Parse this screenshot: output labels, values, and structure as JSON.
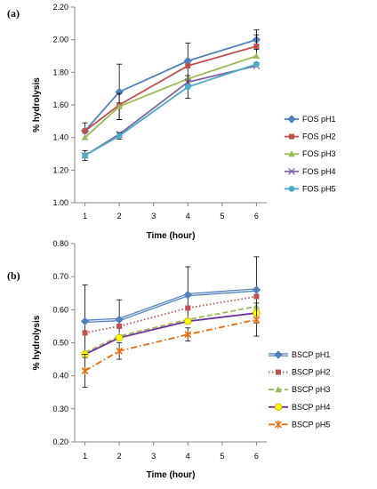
{
  "chart_data": [
    {
      "type": "line",
      "panel_label": "(a)",
      "xlabel": "Time (hour)",
      "ylabel": "% hydrolysis",
      "x": [
        1,
        2,
        4,
        6
      ],
      "x_ticks": [
        "1",
        "2",
        "3",
        "4",
        "5",
        "6"
      ],
      "xlim": [
        0.7,
        6.3
      ],
      "ylim": [
        1.0,
        2.2
      ],
      "y_ticks": [
        "1.00",
        "1.20",
        "1.40",
        "1.60",
        "1.80",
        "2.00",
        "2.20"
      ],
      "grid": false,
      "legend_position": "right",
      "series": [
        {
          "name": "FOS pH1",
          "values": [
            1.44,
            1.68,
            1.87,
            2.0
          ],
          "err": [
            0.05,
            0.17,
            0.11,
            0.06
          ],
          "color": "#4f81bd",
          "marker": "diamond",
          "dash": "solid"
        },
        {
          "name": "FOS pH2",
          "values": [
            1.44,
            1.6,
            1.84,
            1.96
          ],
          "err": [
            0,
            0,
            0,
            0.07
          ],
          "color": "#c0504d",
          "marker": "square",
          "dash": "solid"
        },
        {
          "name": "FOS pH3",
          "values": [
            1.4,
            1.59,
            1.76,
            1.9
          ],
          "err": [
            0,
            0.08,
            0,
            0
          ],
          "color": "#9bbb59",
          "marker": "triangle",
          "dash": "solid"
        },
        {
          "name": "FOS pH4",
          "values": [
            1.29,
            1.42,
            1.74,
            1.84
          ],
          "err": [
            0,
            0,
            0,
            0
          ],
          "color": "#8064a2",
          "marker": "x",
          "dash": "solid"
        },
        {
          "name": "FOS pH5",
          "values": [
            1.29,
            1.41,
            1.71,
            1.85
          ],
          "err": [
            0.03,
            0.02,
            0.07,
            0
          ],
          "color": "#4bacc6",
          "marker": "circle",
          "dash": "solid"
        }
      ]
    },
    {
      "type": "line",
      "panel_label": "(b)",
      "xlabel": "Time (hour)",
      "ylabel": "% hydrolysis",
      "x": [
        1,
        2,
        4,
        6
      ],
      "x_ticks": [
        "1",
        "2",
        "3",
        "4",
        "5",
        "6"
      ],
      "xlim": [
        0.7,
        6.3
      ],
      "ylim": [
        0.2,
        0.8
      ],
      "y_ticks": [
        "0.20",
        "0.30",
        "0.40",
        "0.50",
        "0.60",
        "0.70",
        "0.80"
      ],
      "grid": false,
      "legend_position": "right",
      "series": [
        {
          "name": "BSCP pH1",
          "values": [
            0.565,
            0.57,
            0.645,
            0.66
          ],
          "err": [
            0.11,
            0.06,
            0.085,
            0.1
          ],
          "color": "#4f81bd",
          "marker": "diamond",
          "dash": "double"
        },
        {
          "name": "BSCP pH2",
          "values": [
            0.53,
            0.55,
            0.605,
            0.64
          ],
          "err": [
            0,
            0,
            0,
            0
          ],
          "color": "#c0504d",
          "marker": "square",
          "dash": "dotted"
        },
        {
          "name": "BSCP pH3",
          "values": [
            0.47,
            0.52,
            0.57,
            0.61
          ],
          "err": [
            0,
            0,
            0,
            0
          ],
          "color": "#9bbb59",
          "marker": "triangle",
          "dash": "dashed"
        },
        {
          "name": "BSCP pH4",
          "values": [
            0.465,
            0.515,
            0.565,
            0.59
          ],
          "err": [
            0,
            0,
            0,
            0
          ],
          "color": "#7030a0",
          "marker": "circle-yellow",
          "dash": "solid"
        },
        {
          "name": "BSCP pH5",
          "values": [
            0.415,
            0.475,
            0.525,
            0.57
          ],
          "err": [
            0.05,
            0.025,
            0.02,
            0.05
          ],
          "color": "#e46c0a",
          "marker": "star",
          "dash": "dashdot"
        }
      ]
    }
  ]
}
